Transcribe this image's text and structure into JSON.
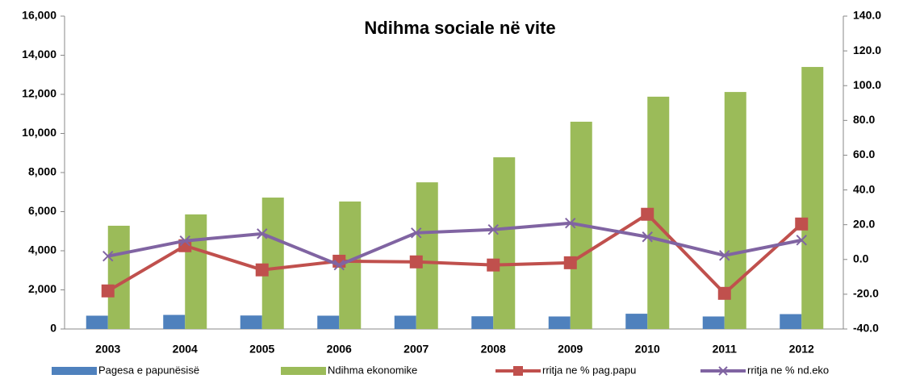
{
  "chart_data": {
    "type": "bar",
    "title": "Ndihma sociale në vite",
    "categories": [
      "2003",
      "2004",
      "2005",
      "2006",
      "2007",
      "2008",
      "2009",
      "2010",
      "2011",
      "2012"
    ],
    "series": [
      {
        "name": "Pagesa e papunësisë",
        "color": "#4f81bd",
        "type": "bar",
        "values": [
          680,
          720,
          690,
          680,
          680,
          650,
          640,
          780,
          640,
          760
        ]
      },
      {
        "name": "Ndihma ekonomike",
        "color": "#9bbb59",
        "type": "bar",
        "values": [
          5280,
          5860,
          6720,
          6520,
          7500,
          8780,
          10600,
          11880,
          12120,
          13400
        ]
      },
      {
        "name": "rritja ne % pag.papu",
        "color": "#c0504d",
        "type": "line",
        "marker": "square",
        "axis": "y2",
        "values": [
          -18.1,
          7.9,
          -6,
          -1,
          -1.4,
          -3.2,
          -1.9,
          26,
          -19.5,
          20.4
        ]
      },
      {
        "name": "rritja ne % nd.eko",
        "color": "#8064a2",
        "type": "line",
        "marker": "x",
        "axis": "y2",
        "values": [
          1.9,
          10.7,
          14.8,
          -3.2,
          15.3,
          17.2,
          20.9,
          13,
          2.3,
          11.1
        ]
      }
    ],
    "ylim": [
      0,
      16000
    ],
    "yticks": [
      0,
      {
        "value": 2000,
        "label": "2,000"
      },
      {
        "value": 4000,
        "label": "4,000"
      },
      {
        "value": 6000,
        "label": "6,000"
      },
      {
        "value": 8000,
        "label": "8,000"
      },
      {
        "value": 10000,
        "label": "10,000"
      },
      {
        "value": 12000,
        "label": "12,000"
      },
      {
        "value": 14000,
        "label": "14,000"
      },
      {
        "value": 16000,
        "label": "16,000"
      }
    ],
    "y2lim": [
      -40,
      140
    ],
    "y2ticks": [
      {
        "value": -40,
        "label": "-40.0"
      },
      {
        "value": -20,
        "label": "-20.0"
      },
      {
        "value": 0,
        "label": "0.0"
      },
      {
        "value": 20,
        "label": "20.0"
      },
      {
        "value": 40,
        "label": "40.0"
      },
      {
        "value": 60,
        "label": "60.0"
      },
      {
        "value": 80,
        "label": "80.0"
      },
      {
        "value": 100,
        "label": "100.0"
      },
      {
        "value": 120,
        "label": "120.0"
      },
      {
        "value": 140,
        "label": "140.0"
      }
    ],
    "grid": false,
    "legend": "bottom"
  }
}
